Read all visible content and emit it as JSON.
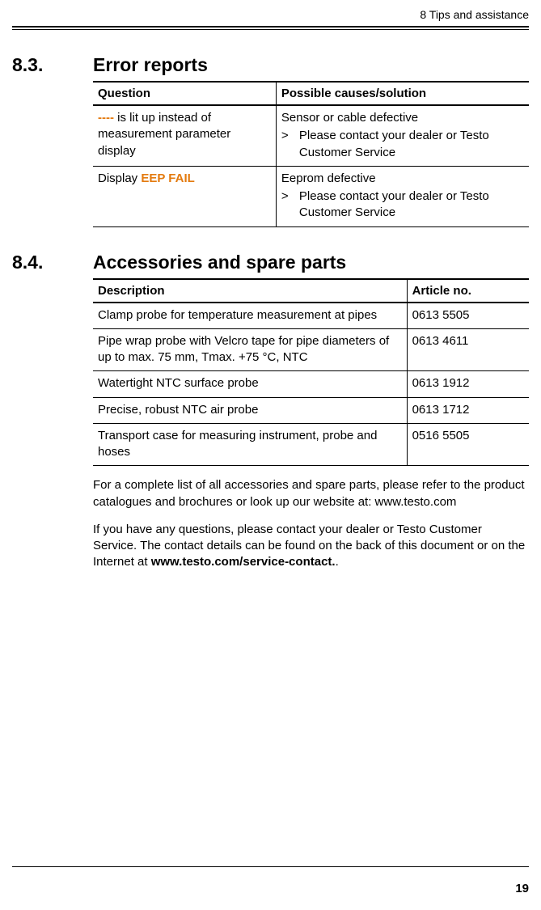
{
  "header": {
    "text": "8 Tips and assistance"
  },
  "section83": {
    "number": "8.3.",
    "title": "Error reports",
    "table": {
      "col_widths": [
        "42%",
        "58%"
      ],
      "headers": [
        "Question",
        "Possible causes/solution"
      ],
      "rows": [
        {
          "q_pre": "----",
          "q_rest": " is lit up instead of measurement parameter display",
          "cause": "Sensor or cable defective",
          "solution": "Please contact your dealer or Testo Customer Service"
        },
        {
          "q_plain_pre": "Display ",
          "q_highlight": "EEP FAIL",
          "cause": "Eeprom defective",
          "solution": "Please contact your dealer or Testo Customer Service"
        }
      ]
    }
  },
  "section84": {
    "number": "8.4.",
    "title": "Accessories and spare parts",
    "table": {
      "col_widths": [
        "72%",
        "28%"
      ],
      "headers": [
        "Description",
        "Article no."
      ],
      "rows": [
        {
          "desc": "Clamp probe for temperature measurement at pipes",
          "art": "0613 5505"
        },
        {
          "desc": "Pipe wrap probe with Velcro tape for pipe diameters of up to max. 75 mm, Tmax. +75 °C, NTC",
          "art": "0613 4611"
        },
        {
          "desc": "Watertight NTC surface probe",
          "art": "0613 1912"
        },
        {
          "desc": "Precise, robust NTC air probe",
          "art": "0613 1712"
        },
        {
          "desc": "Transport case for measuring instrument, probe and hoses",
          "art": "0516 5505"
        }
      ]
    },
    "para1": "For a complete list of all accessories and spare parts, please refer to the product catalogues and brochures or look up our website at: www.testo.com",
    "para2_a": "If you have any questions, please contact your dealer or Testo Customer Service. The contact details can be found on the back of this document or on the Internet at ",
    "para2_bold": "www.testo.com/service-contact.",
    "para2_b": "."
  },
  "page_number": "19",
  "colors": {
    "highlight": "#e37a0e",
    "text": "#000000",
    "background": "#ffffff"
  }
}
